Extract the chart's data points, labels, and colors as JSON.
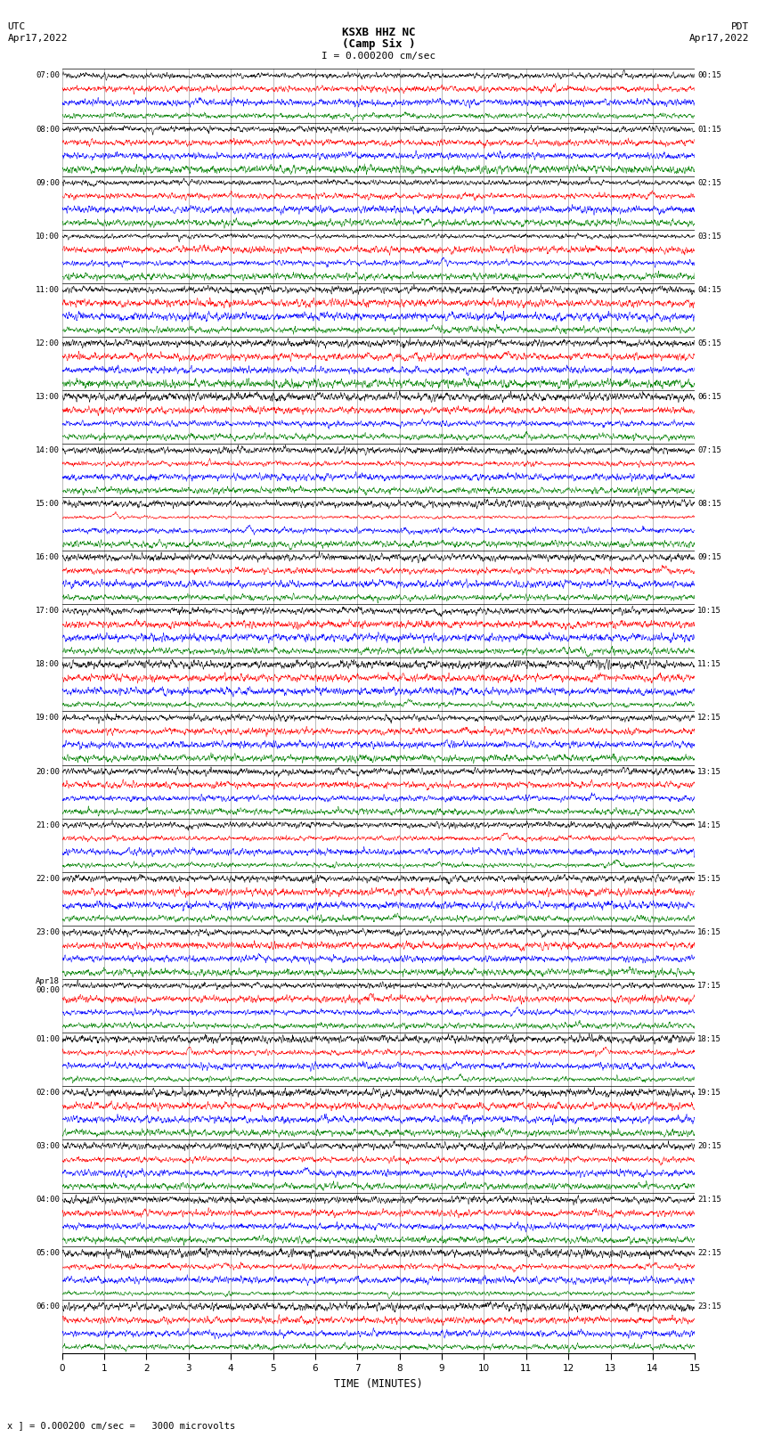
{
  "title_line1": "KSXB HHZ NC",
  "title_line2": "(Camp Six )",
  "scale_text": "I = 0.000200 cm/sec",
  "left_header_line1": "UTC",
  "left_header_line2": "Apr17,2022",
  "right_header_line1": "PDT",
  "right_header_line2": "Apr17,2022",
  "bottom_note": "x ] = 0.000200 cm/sec =   3000 microvolts",
  "xlabel": "TIME (MINUTES)",
  "xlim": [
    0,
    15
  ],
  "xticks": [
    0,
    1,
    2,
    3,
    4,
    5,
    6,
    7,
    8,
    9,
    10,
    11,
    12,
    13,
    14,
    15
  ],
  "background_color": "#ffffff",
  "trace_colors": [
    "#000000",
    "#ff0000",
    "#0000ff",
    "#008000"
  ],
  "hour_blocks": [
    {
      "left": "07:00",
      "right": "00:15"
    },
    {
      "left": "08:00",
      "right": "01:15"
    },
    {
      "left": "09:00",
      "right": "02:15"
    },
    {
      "left": "10:00",
      "right": "03:15"
    },
    {
      "left": "11:00",
      "right": "04:15"
    },
    {
      "left": "12:00",
      "right": "05:15"
    },
    {
      "left": "13:00",
      "right": "06:15"
    },
    {
      "left": "14:00",
      "right": "07:15"
    },
    {
      "left": "15:00",
      "right": "08:15"
    },
    {
      "left": "16:00",
      "right": "09:15"
    },
    {
      "left": "17:00",
      "right": "10:15"
    },
    {
      "left": "18:00",
      "right": "11:15"
    },
    {
      "left": "19:00",
      "right": "12:15"
    },
    {
      "left": "20:00",
      "right": "13:15"
    },
    {
      "left": "21:00",
      "right": "14:15"
    },
    {
      "left": "22:00",
      "right": "15:15"
    },
    {
      "left": "23:00",
      "right": "16:15"
    },
    {
      "left": "Apr18\n00:00",
      "right": "17:15"
    },
    {
      "left": "01:00",
      "right": "18:15"
    },
    {
      "left": "02:00",
      "right": "19:15"
    },
    {
      "left": "03:00",
      "right": "20:15"
    },
    {
      "left": "04:00",
      "right": "21:15"
    },
    {
      "left": "05:00",
      "right": "22:15"
    },
    {
      "left": "06:00",
      "right": "23:15"
    }
  ],
  "num_hour_blocks": 24,
  "traces_per_block": 4,
  "fig_width": 8.5,
  "fig_height": 16.13,
  "dpi": 100,
  "noise_scale": 0.04,
  "seed": 42,
  "linewidth": 0.35
}
